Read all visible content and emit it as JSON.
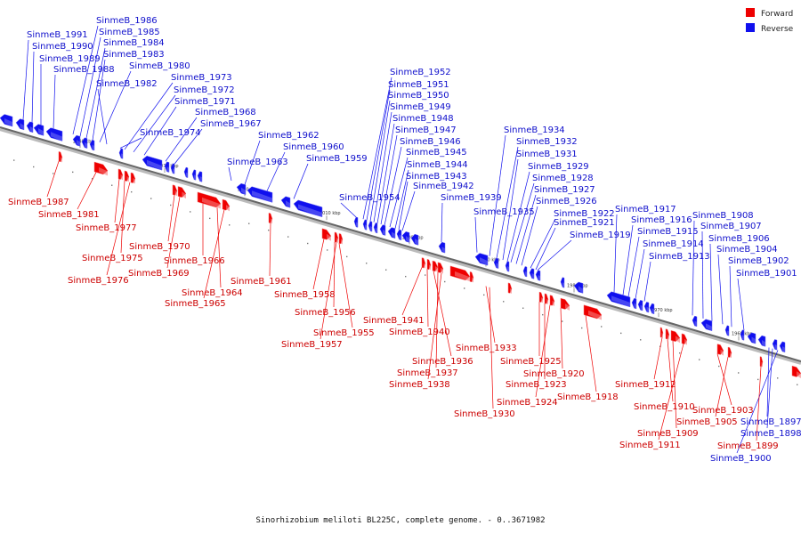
{
  "caption": "Sinorhizobium meliloti BL225C, complete genome. - 0..3671982",
  "legend": [
    {
      "label": "Forward",
      "color": "#ee0000"
    },
    {
      "label": "Reverse",
      "color": "#1010ee"
    }
  ],
  "ticks": [
    "2040 kbp",
    "2030 kbp",
    "2020 kbp",
    "2010 kbp",
    "2000 kbp",
    "1990 kbp",
    "1980 kbp",
    "1970 kbp",
    "1960 kbp"
  ],
  "reverse_labels": [
    "SinmeB_1991",
    "SinmeB_1990",
    "SinmeB_1989",
    "SinmeB_1988",
    "SinmeB_1986",
    "SinmeB_1985",
    "SinmeB_1984",
    "SinmeB_1983",
    "SinmeB_1980",
    "SinmeB_1982",
    "SinmeB_1973",
    "SinmeB_1972",
    "SinmeB_1971",
    "SinmeB_1968",
    "SinmeB_1967",
    "SinmeB_1974",
    "SinmeB_1962",
    "SinmeB_1960",
    "SinmeB_1963",
    "SinmeB_1959",
    "SinmeB_1952",
    "SinmeB_1951",
    "SinmeB_1950",
    "SinmeB_1949",
    "SinmeB_1948",
    "SinmeB_1947",
    "SinmeB_1946",
    "SinmeB_1945",
    "SinmeB_1944",
    "SinmeB_1943",
    "SinmeB_1942",
    "SinmeB_1954",
    "SinmeB_1939",
    "SinmeB_1934",
    "SinmeB_1932",
    "SinmeB_1931",
    "SinmeB_1929",
    "SinmeB_1928",
    "SinmeB_1927",
    "SinmeB_1926",
    "SinmeB_1935",
    "SinmeB_1922",
    "SinmeB_1921",
    "SinmeB_1919",
    "SinmeB_1917",
    "SinmeB_1916",
    "SinmeB_1915",
    "SinmeB_1914",
    "SinmeB_1913",
    "SinmeB_1908",
    "SinmeB_1907",
    "SinmeB_1906",
    "SinmeB_1904",
    "SinmeB_1902",
    "SinmeB_1901",
    "SinmeB_1897",
    "SinmeB_1898",
    "SinmeB_1900"
  ],
  "forward_labels": [
    "SinmeB_1987",
    "SinmeB_1981",
    "SinmeB_1977",
    "SinmeB_1975",
    "SinmeB_1976",
    "SinmeB_1970",
    "SinmeB_1969",
    "SinmeB_1966",
    "SinmeB_1964",
    "SinmeB_1965",
    "SinmeB_1961",
    "SinmeB_1958",
    "SinmeB_1956",
    "SinmeB_1955",
    "SinmeB_1957",
    "SinmeB_1941",
    "SinmeB_1940",
    "SinmeB_1936",
    "SinmeB_1937",
    "SinmeB_1938",
    "SinmeB_1933",
    "SinmeB_1930",
    "SinmeB_1925",
    "SinmeB_1923",
    "SinmeB_1924",
    "SinmeB_1920",
    "SinmeB_1918",
    "SinmeB_1912",
    "SinmeB_1910",
    "SinmeB_1909",
    "SinmeB_1911",
    "SinmeB_1903",
    "SinmeB_1905",
    "SinmeB_1899"
  ]
}
